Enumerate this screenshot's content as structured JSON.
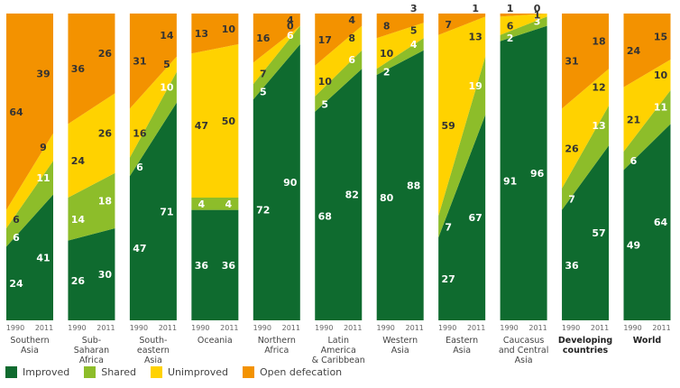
{
  "chart_data": {
    "type": "stacked-area",
    "x_labels": [
      "1990",
      "2011"
    ],
    "groups": [
      {
        "name": "Southern Asia",
        "label_lines": [
          "Southern",
          "Asia"
        ],
        "bold": false,
        "values": {
          "1990": [
            24,
            6,
            6,
            64
          ],
          "2011": [
            41,
            11,
            9,
            39
          ]
        }
      },
      {
        "name": "Sub-Saharan Africa",
        "label_lines": [
          "Sub-",
          "Saharan",
          "Africa"
        ],
        "bold": false,
        "values": {
          "1990": [
            26,
            14,
            24,
            36
          ],
          "2011": [
            30,
            18,
            26,
            26
          ]
        }
      },
      {
        "name": "South-eastern Asia",
        "label_lines": [
          "South-",
          "eastern",
          "Asia"
        ],
        "bold": false,
        "values": {
          "1990": [
            47,
            6,
            16,
            31
          ],
          "2011": [
            71,
            10,
            5,
            14
          ]
        }
      },
      {
        "name": "Oceania",
        "label_lines": [
          "Oceania"
        ],
        "bold": false,
        "values": {
          "1990": [
            36,
            4,
            47,
            13
          ],
          "2011": [
            36,
            4,
            50,
            10
          ]
        }
      },
      {
        "name": "Northern Africa",
        "label_lines": [
          "Northern",
          "Africa"
        ],
        "bold": false,
        "values": {
          "1990": [
            72,
            5,
            7,
            16
          ],
          "2011": [
            90,
            6,
            0,
            4
          ]
        }
      },
      {
        "name": "Latin America & Caribbean",
        "label_lines": [
          "Latin",
          "America",
          "& Caribbean"
        ],
        "bold": false,
        "values": {
          "1990": [
            68,
            5,
            10,
            17
          ],
          "2011": [
            82,
            6,
            8,
            4
          ]
        }
      },
      {
        "name": "Western Asia",
        "label_lines": [
          "Western",
          "Asia"
        ],
        "bold": false,
        "values": {
          "1990": [
            80,
            2,
            10,
            8
          ],
          "2011": [
            88,
            4,
            5,
            3
          ]
        }
      },
      {
        "name": "Eastern Asia",
        "label_lines": [
          "Eastern",
          "Asia"
        ],
        "bold": false,
        "values": {
          "1990": [
            27,
            7,
            59,
            7
          ],
          "2011": [
            67,
            19,
            13,
            1
          ]
        }
      },
      {
        "name": "Caucasus and Central Asia",
        "label_lines": [
          "Caucasus",
          "and Central",
          "Asia"
        ],
        "bold": false,
        "values": {
          "1990": [
            91,
            2,
            6,
            1
          ],
          "2011": [
            96,
            3,
            1,
            0
          ]
        }
      },
      {
        "name": "Developing countries",
        "label_lines": [
          "Developing",
          "countries"
        ],
        "bold": true,
        "values": {
          "1990": [
            36,
            7,
            26,
            31
          ],
          "2011": [
            57,
            13,
            12,
            18
          ]
        }
      },
      {
        "name": "World",
        "label_lines": [
          "World"
        ],
        "bold": true,
        "values": {
          "1990": [
            49,
            6,
            21,
            24
          ],
          "2011": [
            64,
            11,
            10,
            15
          ]
        }
      }
    ],
    "series": [
      {
        "name": "Improved",
        "color": "#0f6b2f"
      },
      {
        "name": "Shared",
        "color": "#8dbd2a"
      },
      {
        "name": "Unimproved",
        "color": "#ffd200"
      },
      {
        "name": "Open defecation",
        "color": "#f39200"
      }
    ],
    "ylim": [
      0,
      100
    ],
    "legend_position": "bottom-left"
  },
  "legend": {
    "items": [
      "Improved",
      "Shared",
      "Unimproved",
      "Open defecation"
    ]
  }
}
